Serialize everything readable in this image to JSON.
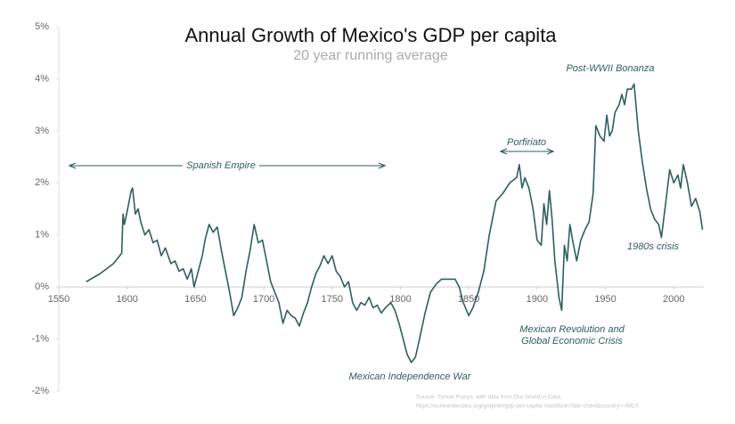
{
  "chart_data": {
    "type": "line",
    "title": "Annual Growth of Mexico's GDP per capita",
    "subtitle": "20 year running average",
    "x": [
      1570,
      1580,
      1590,
      1596,
      1597,
      1598,
      1600,
      1603,
      1604,
      1606,
      1608,
      1610,
      1613,
      1616,
      1619,
      1622,
      1625,
      1628,
      1632,
      1635,
      1638,
      1641,
      1644,
      1647,
      1649,
      1652,
      1655,
      1657,
      1660,
      1663,
      1666,
      1669,
      1672,
      1675,
      1678,
      1681,
      1684,
      1687,
      1690,
      1693,
      1696,
      1699,
      1702,
      1705,
      1708,
      1711,
      1714,
      1717,
      1720,
      1723,
      1726,
      1729,
      1732,
      1735,
      1738,
      1741,
      1744,
      1747,
      1750,
      1753,
      1756,
      1759,
      1762,
      1765,
      1768,
      1771,
      1774,
      1777,
      1780,
      1783,
      1786,
      1789,
      1793,
      1796,
      1799,
      1802,
      1805,
      1808,
      1811,
      1814,
      1818,
      1822,
      1826,
      1830,
      1835,
      1840,
      1843,
      1846,
      1850,
      1853,
      1857,
      1861,
      1865,
      1870,
      1875,
      1880,
      1885,
      1887,
      1889,
      1891,
      1894,
      1897,
      1900,
      1903,
      1905,
      1907,
      1909,
      1911,
      1913,
      1916,
      1918,
      1920,
      1922,
      1924,
      1926,
      1929,
      1932,
      1935,
      1938,
      1941,
      1943,
      1946,
      1949,
      1951,
      1953,
      1955,
      1957,
      1960,
      1962,
      1964,
      1966,
      1969,
      1971,
      1974,
      1977,
      1980,
      1983,
      1986,
      1989,
      1991,
      1994,
      1997,
      2000,
      2003,
      2005,
      2007,
      2010,
      2013,
      2016,
      2019,
      2021
    ],
    "values": [
      0.1,
      0.25,
      0.45,
      0.65,
      1.4,
      1.2,
      1.45,
      1.85,
      1.9,
      1.4,
      1.5,
      1.25,
      1.0,
      1.1,
      0.85,
      0.9,
      0.6,
      0.75,
      0.45,
      0.5,
      0.3,
      0.35,
      0.15,
      0.35,
      0.0,
      0.3,
      0.6,
      0.9,
      1.2,
      1.05,
      1.15,
      0.7,
      0.3,
      -0.1,
      -0.55,
      -0.4,
      -0.2,
      0.3,
      0.7,
      1.2,
      0.85,
      0.9,
      0.5,
      0.1,
      -0.1,
      -0.3,
      -0.7,
      -0.45,
      -0.55,
      -0.6,
      -0.75,
      -0.5,
      -0.3,
      0.0,
      0.25,
      0.4,
      0.6,
      0.45,
      0.6,
      0.3,
      0.2,
      0.0,
      0.1,
      -0.3,
      -0.45,
      -0.3,
      -0.35,
      -0.2,
      -0.4,
      -0.35,
      -0.5,
      -0.4,
      -0.3,
      -0.45,
      -0.7,
      -1.0,
      -1.3,
      -1.45,
      -1.35,
      -1.0,
      -0.5,
      -0.1,
      0.05,
      0.15,
      0.15,
      0.15,
      0.0,
      -0.3,
      -0.55,
      -0.4,
      -0.1,
      0.3,
      1.0,
      1.65,
      1.8,
      2.0,
      2.1,
      2.35,
      1.9,
      2.1,
      1.9,
      1.5,
      0.9,
      0.8,
      1.6,
      1.2,
      1.85,
      1.3,
      0.5,
      -0.2,
      -0.45,
      0.8,
      0.5,
      1.2,
      0.9,
      0.5,
      0.9,
      1.1,
      1.25,
      1.8,
      3.1,
      2.9,
      2.8,
      3.3,
      2.9,
      3.0,
      3.35,
      3.5,
      3.7,
      3.5,
      3.8,
      3.8,
      3.9,
      3.0,
      2.4,
      1.9,
      1.5,
      1.3,
      1.2,
      0.95,
      1.6,
      2.25,
      2.0,
      2.15,
      1.9,
      2.35,
      2.0,
      1.55,
      1.7,
      1.45,
      1.1
    ],
    "color": "#2e5e5e",
    "xlim": [
      1550,
      2022
    ],
    "xticks": [
      1550,
      1600,
      1650,
      1700,
      1750,
      1800,
      1850,
      1900,
      1950,
      2000
    ],
    "ylim": [
      -2,
      5
    ],
    "yticks": [
      {
        "value": -2,
        "label": "-2%"
      },
      {
        "value": -1,
        "label": "-1%"
      },
      {
        "value": 0,
        "label": "0%"
      },
      {
        "value": 1,
        "label": "1%"
      },
      {
        "value": 2,
        "label": "2%"
      },
      {
        "value": 3,
        "label": "3%"
      },
      {
        "value": 4,
        "label": "4%"
      },
      {
        "value": 5,
        "label": "5%"
      }
    ],
    "annotations": [
      "Spanish Empire",
      "Porfiriato",
      "Post-WWII Bonanza",
      "1980s crisis",
      "Mexican Revolution and",
      "Global Economic Crisis",
      "Mexican Independence War"
    ],
    "source": [
      "Source: Tomas Pueyo, with data from Our World in Data,",
      "https://ourworldindata.org/grapher/gdp-per-capita-maddison?tab=chart&country=~MEX"
    ]
  }
}
